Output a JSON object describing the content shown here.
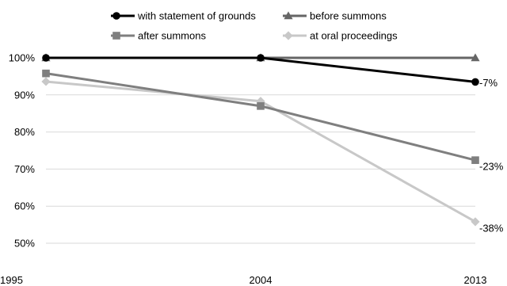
{
  "chart_data": {
    "type": "line",
    "title": "",
    "xlabel": "",
    "ylabel": "",
    "x": [
      1995,
      2004,
      2013
    ],
    "x_tick_labels": [
      "1995",
      "2004",
      "2013"
    ],
    "ylim": [
      50,
      100
    ],
    "y_ticks": [
      50,
      60,
      70,
      80,
      90,
      100
    ],
    "y_tick_labels": [
      "50%",
      "60%",
      "70%",
      "80%",
      "90%",
      "100%"
    ],
    "grid": "horizontal",
    "legend_position": "top",
    "series": [
      {
        "name": "with statement of grounds",
        "values": [
          100,
          100,
          93.5
        ],
        "color": "#000000",
        "marker": "circle",
        "end_label": "-7%"
      },
      {
        "name": "before summons",
        "values": [
          100,
          100,
          100
        ],
        "color": "#666666",
        "marker": "triangle",
        "end_label": ""
      },
      {
        "name": "after summons",
        "values": [
          95.8,
          87,
          72.4
        ],
        "color": "#7f7f7f",
        "marker": "square",
        "end_label": "-23%"
      },
      {
        "name": "at oral proceedings",
        "values": [
          93.6,
          88.3,
          55.8
        ],
        "color": "#c8c8c8",
        "marker": "diamond",
        "end_label": "-38%"
      }
    ]
  }
}
